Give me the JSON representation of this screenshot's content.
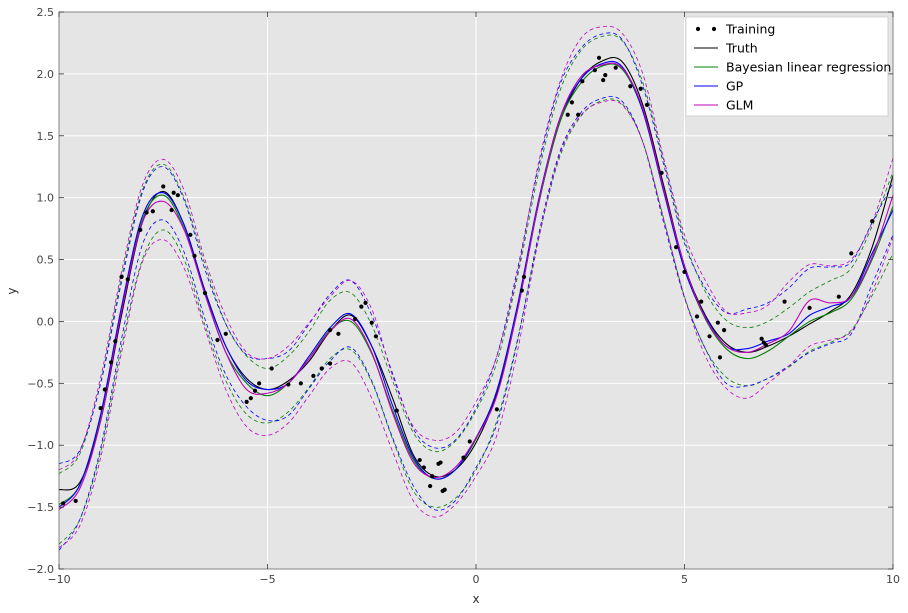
{
  "chart_data": {
    "type": "line",
    "title": "",
    "xlabel": "x",
    "ylabel": "y",
    "xlim": [
      -10,
      10
    ],
    "ylim": [
      -2.0,
      2.5
    ],
    "xticks": [
      -10,
      -5,
      0,
      5,
      10
    ],
    "xtick_labels": [
      "−10",
      "−5",
      "0",
      "5",
      "10"
    ],
    "yticks": [
      -2.0,
      -1.5,
      -1.0,
      -0.5,
      0.0,
      0.5,
      1.0,
      1.5,
      2.0,
      2.5
    ],
    "ytick_labels": [
      "−2.0",
      "−1.5",
      "−1.0",
      "−0.5",
      "0.0",
      "0.5",
      "1.0",
      "1.5",
      "2.0",
      "2.5"
    ],
    "grid": true,
    "background": "#e5e5e5",
    "legend_position": "top-right",
    "legend": [
      {
        "label": "Training",
        "style": "dots",
        "color": "#000000"
      },
      {
        "label": "Truth",
        "style": "line",
        "color": "#000000"
      },
      {
        "label": "Bayesian linear regression",
        "style": "line",
        "color": "#008000"
      },
      {
        "label": "GP",
        "style": "line",
        "color": "#0000ff"
      },
      {
        "label": "GLM",
        "style": "line",
        "color": "#bf00bf"
      }
    ],
    "x": [
      -10,
      -9.5,
      -9,
      -8.5,
      -8,
      -7.5,
      -7,
      -6.5,
      -6,
      -5.5,
      -5,
      -4.5,
      -4,
      -3.5,
      -3,
      -2.5,
      -2,
      -1.5,
      -1,
      -0.5,
      0,
      0.5,
      1,
      1.5,
      2,
      2.5,
      3,
      3.5,
      4,
      4.5,
      5,
      5.5,
      6,
      6.5,
      7,
      7.5,
      8,
      8.5,
      9,
      9.5,
      10
    ],
    "series": [
      {
        "name": "Truth",
        "color": "#000000",
        "dashed": false,
        "values": [
          -1.36,
          -1.3,
          -0.8,
          0.05,
          0.8,
          1.05,
          0.78,
          0.25,
          -0.2,
          -0.46,
          -0.55,
          -0.48,
          -0.32,
          -0.08,
          0.05,
          -0.2,
          -0.62,
          -1.08,
          -1.25,
          -1.2,
          -0.98,
          -0.58,
          0.1,
          0.95,
          1.6,
          1.95,
          2.1,
          2.1,
          1.75,
          1.1,
          0.45,
          0.05,
          -0.18,
          -0.25,
          -0.2,
          -0.12,
          -0.02,
          0.08,
          0.22,
          0.6,
          1.18
        ]
      },
      {
        "name": "Bayesian linear regression",
        "color": "#008000",
        "dashed": false,
        "values": [
          -1.48,
          -1.32,
          -0.76,
          0.1,
          0.82,
          1.02,
          0.75,
          0.22,
          -0.25,
          -0.5,
          -0.6,
          -0.5,
          -0.3,
          -0.07,
          0.0,
          -0.26,
          -0.72,
          -1.12,
          -1.27,
          -1.2,
          -0.95,
          -0.56,
          0.12,
          0.95,
          1.6,
          1.92,
          2.06,
          2.04,
          1.7,
          1.06,
          0.43,
          0.02,
          -0.22,
          -0.3,
          -0.24,
          -0.12,
          0.0,
          0.07,
          0.18,
          0.5,
          0.93
        ]
      },
      {
        "name": "GP",
        "color": "#0000ff",
        "dashed": false,
        "values": [
          -1.5,
          -1.32,
          -0.75,
          0.12,
          0.85,
          1.04,
          0.78,
          0.24,
          -0.2,
          -0.48,
          -0.55,
          -0.5,
          -0.28,
          -0.05,
          0.06,
          -0.2,
          -0.68,
          -1.1,
          -1.27,
          -1.2,
          -0.94,
          -0.56,
          0.14,
          0.98,
          1.63,
          1.95,
          2.08,
          2.06,
          1.7,
          1.05,
          0.42,
          0.04,
          -0.2,
          -0.22,
          -0.16,
          -0.1,
          0.05,
          0.12,
          0.2,
          0.55,
          0.9
        ]
      },
      {
        "name": "GLM",
        "color": "#bf00bf",
        "dashed": false,
        "values": [
          -1.52,
          -1.35,
          -0.8,
          0.08,
          0.8,
          0.97,
          0.74,
          0.22,
          -0.25,
          -0.55,
          -0.58,
          -0.5,
          -0.3,
          -0.08,
          0.02,
          -0.25,
          -0.74,
          -1.14,
          -1.26,
          -1.18,
          -0.94,
          -0.6,
          0.1,
          0.96,
          1.63,
          1.97,
          2.07,
          2.05,
          1.72,
          1.07,
          0.45,
          0.03,
          -0.2,
          -0.25,
          -0.18,
          -0.08,
          0.17,
          0.15,
          0.2,
          0.52,
          1.02
        ]
      },
      {
        "name": "",
        "color": "#008000",
        "dashed": true,
        "values": [
          -1.23,
          -1.07,
          -0.49,
          0.36,
          1.06,
          1.27,
          1.0,
          0.46,
          -0.02,
          -0.28,
          -0.38,
          -0.28,
          -0.08,
          0.17,
          0.23,
          -0.03,
          -0.48,
          -0.9,
          -1.05,
          -0.97,
          -0.72,
          -0.33,
          0.37,
          1.2,
          1.85,
          2.18,
          2.3,
          2.27,
          1.93,
          1.3,
          0.66,
          0.24,
          0.01,
          -0.05,
          0.0,
          0.11,
          0.24,
          0.33,
          0.43,
          0.77,
          1.21
        ]
      },
      {
        "name": "",
        "color": "#008000",
        "dashed": true,
        "values": [
          -1.8,
          -1.6,
          -1.05,
          -0.2,
          0.5,
          0.74,
          0.5,
          -0.03,
          -0.48,
          -0.75,
          -0.82,
          -0.73,
          -0.53,
          -0.3,
          -0.23,
          -0.49,
          -0.95,
          -1.37,
          -1.5,
          -1.43,
          -1.2,
          -0.8,
          -0.14,
          0.67,
          1.32,
          1.65,
          1.78,
          1.76,
          1.45,
          0.83,
          0.2,
          -0.22,
          -0.45,
          -0.52,
          -0.46,
          -0.37,
          -0.24,
          -0.17,
          -0.07,
          0.21,
          0.55
        ]
      },
      {
        "name": "",
        "color": "#0000ff",
        "dashed": true,
        "values": [
          -1.15,
          -1.04,
          -0.5,
          0.32,
          1.04,
          1.25,
          0.98,
          0.42,
          -0.02,
          -0.27,
          -0.3,
          -0.24,
          -0.02,
          0.22,
          0.33,
          0.05,
          -0.42,
          -0.87,
          -1.02,
          -0.96,
          -0.7,
          -0.28,
          0.43,
          1.25,
          1.9,
          2.2,
          2.32,
          2.28,
          1.9,
          1.27,
          0.63,
          0.27,
          0.07,
          0.1,
          0.15,
          0.27,
          0.43,
          0.44,
          0.48,
          0.8,
          1.12
        ]
      },
      {
        "name": "",
        "color": "#0000ff",
        "dashed": true,
        "values": [
          -1.85,
          -1.6,
          -1.02,
          -0.14,
          0.62,
          0.82,
          0.56,
          0.02,
          -0.43,
          -0.69,
          -0.8,
          -0.76,
          -0.54,
          -0.32,
          -0.21,
          -0.48,
          -0.94,
          -1.33,
          -1.52,
          -1.45,
          -1.18,
          -0.83,
          -0.15,
          0.7,
          1.36,
          1.68,
          1.8,
          1.78,
          1.45,
          0.8,
          0.19,
          -0.22,
          -0.5,
          -0.52,
          -0.46,
          -0.36,
          -0.25,
          -0.18,
          -0.1,
          0.3,
          0.7
        ]
      },
      {
        "name": "",
        "color": "#bf00bf",
        "dashed": true,
        "values": [
          -1.2,
          -1.05,
          -0.45,
          0.4,
          1.1,
          1.31,
          1.06,
          0.5,
          0.04,
          -0.25,
          -0.3,
          -0.2,
          -0.01,
          0.2,
          0.33,
          0.1,
          -0.44,
          -0.85,
          -0.96,
          -0.9,
          -0.65,
          -0.28,
          0.4,
          1.28,
          1.92,
          2.28,
          2.38,
          2.33,
          2.0,
          1.32,
          0.7,
          0.33,
          0.08,
          0.07,
          0.13,
          0.32,
          0.46,
          0.45,
          0.5,
          0.8,
          1.32
        ]
      },
      {
        "name": "",
        "color": "#bf00bf",
        "dashed": true,
        "values": [
          -1.83,
          -1.65,
          -1.1,
          -0.25,
          0.48,
          0.66,
          0.43,
          -0.06,
          -0.55,
          -0.85,
          -0.92,
          -0.82,
          -0.6,
          -0.38,
          -0.33,
          -0.62,
          -1.05,
          -1.45,
          -1.58,
          -1.48,
          -1.25,
          -0.92,
          -0.23,
          0.66,
          1.34,
          1.66,
          1.77,
          1.75,
          1.45,
          0.83,
          0.2,
          -0.28,
          -0.54,
          -0.62,
          -0.5,
          -0.36,
          -0.2,
          -0.15,
          -0.08,
          0.24,
          0.68
        ]
      }
    ],
    "training_points": [
      [
        -9.9,
        -1.47
      ],
      [
        -9.6,
        -1.45
      ],
      [
        -9.0,
        -0.7
      ],
      [
        -8.9,
        -0.55
      ],
      [
        -8.75,
        -0.33
      ],
      [
        -8.65,
        -0.16
      ],
      [
        -8.5,
        0.36
      ],
      [
        -8.35,
        0.34
      ],
      [
        -8.05,
        0.74
      ],
      [
        -7.9,
        0.88
      ],
      [
        -7.75,
        0.89
      ],
      [
        -7.5,
        1.09
      ],
      [
        -7.3,
        0.9
      ],
      [
        -7.25,
        1.04
      ],
      [
        -7.15,
        1.02
      ],
      [
        -6.85,
        0.7
      ],
      [
        -6.75,
        0.53
      ],
      [
        -6.5,
        0.23
      ],
      [
        -6.2,
        -0.15
      ],
      [
        -6.0,
        -0.1
      ],
      [
        -5.5,
        -0.65
      ],
      [
        -5.4,
        -0.62
      ],
      [
        -5.3,
        -0.56
      ],
      [
        -5.2,
        -0.5
      ],
      [
        -4.9,
        -0.38
      ],
      [
        -4.5,
        -0.51
      ],
      [
        -4.2,
        -0.5
      ],
      [
        -3.9,
        -0.44
      ],
      [
        -3.7,
        -0.38
      ],
      [
        -3.5,
        -0.34
      ],
      [
        -3.5,
        -0.07
      ],
      [
        -3.3,
        -0.1
      ],
      [
        -2.9,
        0.02
      ],
      [
        -2.75,
        0.12
      ],
      [
        -2.65,
        0.15
      ],
      [
        -2.5,
        -0.01
      ],
      [
        -2.4,
        -0.12
      ],
      [
        -1.9,
        -0.72
      ],
      [
        -1.35,
        -1.12
      ],
      [
        -1.25,
        -1.18
      ],
      [
        -1.1,
        -1.33
      ],
      [
        -1.05,
        -1.25
      ],
      [
        -0.9,
        -1.15
      ],
      [
        -0.85,
        -1.14
      ],
      [
        -0.8,
        -1.37
      ],
      [
        -0.75,
        -1.36
      ],
      [
        -0.3,
        -1.1
      ],
      [
        -0.15,
        -0.97
      ],
      [
        0.5,
        -0.71
      ],
      [
        1.1,
        0.25
      ],
      [
        1.15,
        0.36
      ],
      [
        2.2,
        1.67
      ],
      [
        2.3,
        1.77
      ],
      [
        2.45,
        1.67
      ],
      [
        2.55,
        1.94
      ],
      [
        2.85,
        2.03
      ],
      [
        2.95,
        2.13
      ],
      [
        3.05,
        1.95
      ],
      [
        3.1,
        1.99
      ],
      [
        3.35,
        2.05
      ],
      [
        3.7,
        1.9
      ],
      [
        3.95,
        1.88
      ],
      [
        4.1,
        1.75
      ],
      [
        4.45,
        1.2
      ],
      [
        4.8,
        0.6
      ],
      [
        5.0,
        0.4
      ],
      [
        5.3,
        0.04
      ],
      [
        5.4,
        0.16
      ],
      [
        5.6,
        -0.12
      ],
      [
        5.8,
        -0.01
      ],
      [
        5.85,
        -0.29
      ],
      [
        5.95,
        -0.07
      ],
      [
        6.85,
        -0.14
      ],
      [
        6.9,
        -0.17
      ],
      [
        6.95,
        -0.19
      ],
      [
        7.4,
        0.16
      ],
      [
        8.0,
        0.11
      ],
      [
        8.7,
        0.2
      ],
      [
        9.0,
        0.55
      ],
      [
        9.5,
        0.81
      ]
    ]
  }
}
